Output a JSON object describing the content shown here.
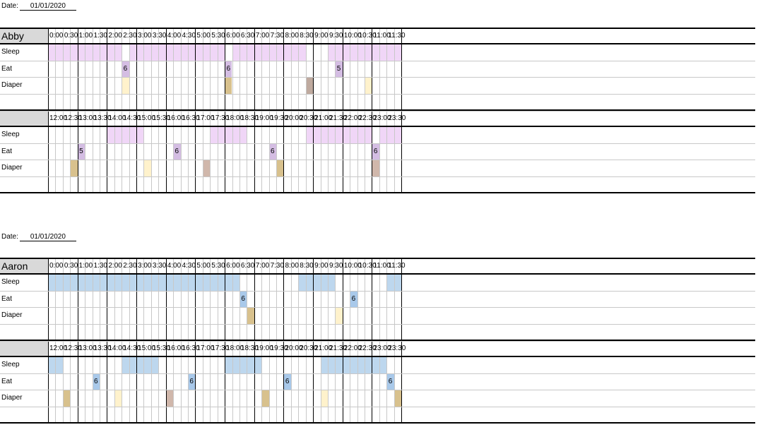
{
  "colors": {
    "abby_sleep": "#f0d6f7",
    "abby_eat": "#d4bde3",
    "aaron_sleep": "#bdd7ee",
    "aaron_eat": "#a9c9ea",
    "diaper_wet": "#fff2cc",
    "diaper_tan": "#d8c18d",
    "diaper_taupe": "#d0b7ab",
    "diaper_dark": "#bfaa9f",
    "header_gray": "#d9d9d9"
  },
  "row_labels": [
    "Sleep",
    "Eat",
    "Diaper"
  ],
  "times_am": [
    "0:00",
    "0:30",
    "1:00",
    "1:30",
    "2:00",
    "2:30",
    "3:00",
    "3:30",
    "4:00",
    "4:30",
    "5:00",
    "5:30",
    "6:00",
    "6:30",
    "7:00",
    "7:30",
    "8:00",
    "8:30",
    "9:00",
    "9:30",
    "10:00",
    "10:30",
    "11:00",
    "11:30"
  ],
  "times_pm": [
    "12:00",
    "12:30",
    "13:00",
    "13:30",
    "14:00",
    "14:30",
    "15:00",
    "15:30",
    "16:00",
    "16:30",
    "17:00",
    "17:30",
    "18:00",
    "18:30",
    "19:00",
    "19:30",
    "20:00",
    "20:30",
    "21:00",
    "21:30",
    "22:00",
    "22:30",
    "23:00",
    "23:30"
  ],
  "babies": [
    {
      "date_label": "Date:",
      "date": "01/01/2020",
      "name": "Abby",
      "sleep_color": "#f0d6f7",
      "eat_color": "#d4bde3",
      "halves": [
        {
          "sleep": [
            [
              0,
              10
            ],
            [
              11,
              24
            ],
            [
              25,
              35
            ],
            [
              38,
              48
            ]
          ],
          "eat": [
            {
              "slot": 10,
              "val": "6"
            },
            {
              "slot": 24,
              "val": "6"
            },
            {
              "slot": 39,
              "val": "5"
            }
          ],
          "diaper": [
            {
              "slot": 10,
              "c": "diaper_wet"
            },
            {
              "slot": 24,
              "c": "diaper_tan"
            },
            {
              "slot": 35,
              "c": "diaper_dark"
            },
            {
              "slot": 43,
              "c": "diaper_wet"
            }
          ]
        },
        {
          "sleep": [
            [
              8,
              13
            ],
            [
              22,
              27
            ],
            [
              35,
              44
            ],
            [
              45,
              48
            ]
          ],
          "eat": [
            {
              "slot": 4,
              "val": "5"
            },
            {
              "slot": 17,
              "val": "6"
            },
            {
              "slot": 30,
              "val": "6"
            },
            {
              "slot": 44,
              "val": "6"
            }
          ],
          "diaper": [
            {
              "slot": 3,
              "c": "diaper_tan"
            },
            {
              "slot": 13,
              "c": "diaper_wet"
            },
            {
              "slot": 21,
              "c": "diaper_taupe"
            },
            {
              "slot": 31,
              "c": "diaper_tan"
            },
            {
              "slot": 44,
              "c": "diaper_taupe"
            }
          ]
        }
      ]
    },
    {
      "date_label": "Date:",
      "date": "01/01/2020",
      "name": "Aaron",
      "sleep_color": "#bdd7ee",
      "eat_color": "#a9c9ea",
      "halves": [
        {
          "sleep": [
            [
              0,
              26
            ],
            [
              34,
              39
            ],
            [
              46,
              48
            ]
          ],
          "eat": [
            {
              "slot": 26,
              "val": "6"
            },
            {
              "slot": 41,
              "val": "6"
            }
          ],
          "diaper": [
            {
              "slot": 27,
              "c": "diaper_tan"
            },
            {
              "slot": 39,
              "c": "diaper_wet"
            }
          ]
        },
        {
          "sleep": [
            [
              0,
              2
            ],
            [
              10,
              15
            ],
            [
              24,
              29
            ],
            [
              37,
              46
            ]
          ],
          "eat": [
            {
              "slot": 6,
              "val": "6"
            },
            {
              "slot": 19,
              "val": "6"
            },
            {
              "slot": 32,
              "val": "6"
            },
            {
              "slot": 46,
              "val": "6"
            }
          ],
          "diaper": [
            {
              "slot": 2,
              "c": "diaper_tan"
            },
            {
              "slot": 9,
              "c": "diaper_wet"
            },
            {
              "slot": 16,
              "c": "diaper_taupe"
            },
            {
              "slot": 29,
              "c": "diaper_tan"
            },
            {
              "slot": 37,
              "c": "diaper_wet"
            },
            {
              "slot": 47,
              "c": "diaper_tan"
            }
          ]
        }
      ]
    }
  ]
}
